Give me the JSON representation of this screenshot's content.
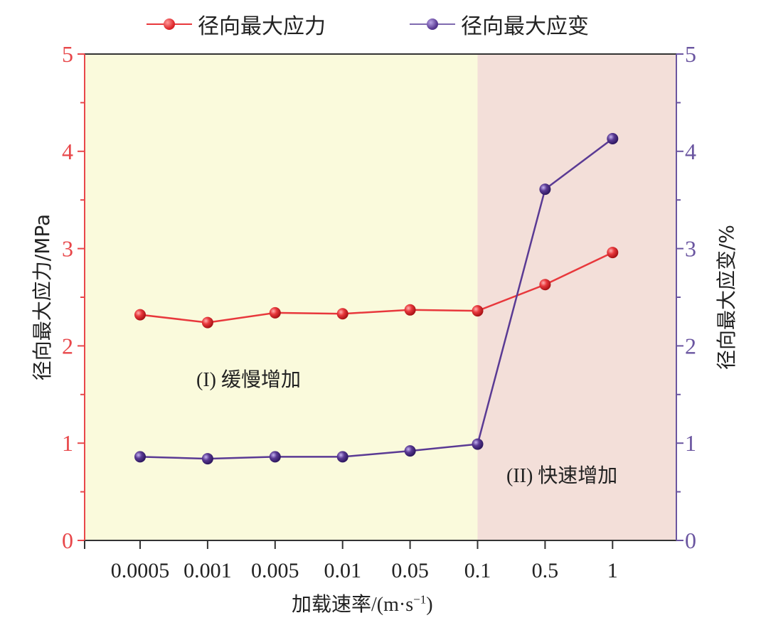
{
  "chart_data": {
    "type": "line",
    "title": "",
    "categories": [
      "0.0005",
      "0.001",
      "0.005",
      "0.01",
      "0.05",
      "0.1",
      "0.5",
      "1"
    ],
    "xlabel": "加载速率/(m·s⁻¹)",
    "ylabel": "径向最大应力/MPa",
    "ylabel_right": "径向最大应变/%",
    "ylim": [
      0,
      5
    ],
    "ylim_right": [
      0,
      5
    ],
    "yticks": [
      0,
      1,
      2,
      3,
      4,
      5
    ],
    "grid": false,
    "legend_position": "top",
    "series": [
      {
        "name": "径向最大应力",
        "axis": "left",
        "color": "#e8383c",
        "values": [
          2.32,
          2.24,
          2.34,
          2.33,
          2.37,
          2.36,
          2.63,
          2.96
        ]
      },
      {
        "name": "径向最大应变",
        "axis": "right",
        "color": "#5a3a94",
        "values": [
          0.86,
          0.84,
          0.86,
          0.86,
          0.92,
          0.99,
          3.61,
          4.13
        ]
      }
    ],
    "regions": [
      {
        "label": "(I) 缓慢增加",
        "from_index": -0.8,
        "to_index": 5,
        "color": "#fafadc"
      },
      {
        "label": "(II) 快速增加",
        "from_index": 5,
        "to_index": 7.95,
        "color": "#f3dfd9"
      }
    ]
  },
  "legend": {
    "stress_label": "径向最大应力",
    "strain_label": "径向最大应变"
  },
  "regions": {
    "slow_roman": "(I)",
    "slow_text": "缓慢增加",
    "fast_roman": "(II)",
    "fast_text": "快速增加"
  },
  "axes": {
    "x_title_cn": "加载速率",
    "x_title_unit": "/(m·s",
    "x_title_sup": "−1",
    "x_title_close": ")",
    "y_left_title": "径向最大应力/MPa",
    "y_right_title": "径向最大应变/%"
  },
  "colors": {
    "stress": "#e8383c",
    "strain": "#5a3a94",
    "left_axis": "#e8474a",
    "right_axis": "#6a55a0",
    "region_slow": "#fafadc",
    "region_fast": "#f3dfd9"
  }
}
